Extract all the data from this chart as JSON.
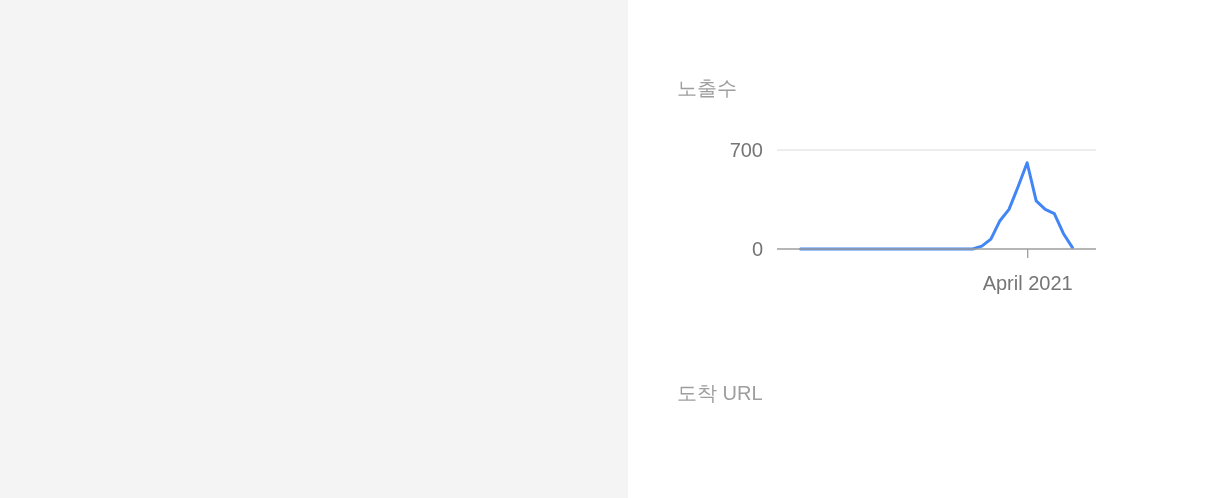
{
  "chart_data": {
    "type": "line",
    "title": "노출수",
    "categories": [
      null,
      null,
      null,
      null,
      null,
      null,
      null,
      null,
      null,
      null,
      null,
      null,
      null,
      null,
      null,
      null,
      null,
      null,
      null,
      null,
      null,
      null,
      null,
      null,
      null,
      null,
      null,
      null,
      null,
      null,
      null
    ],
    "series": [
      {
        "color": "#4285f4",
        "values": [
          0,
          0,
          0,
          0,
          0,
          0,
          0,
          0,
          0,
          0,
          0,
          0,
          0,
          0,
          0,
          0,
          0,
          0,
          0,
          0,
          20,
          70,
          200,
          280,
          440,
          610,
          340,
          280,
          250,
          110,
          10
        ]
      }
    ],
    "ylim": [
      0,
      700
    ],
    "yticks": [
      0,
      700
    ],
    "grid": "y",
    "line_style": "solid",
    "annotations": [
      "April 2021",
      "도착 URL"
    ]
  }
}
